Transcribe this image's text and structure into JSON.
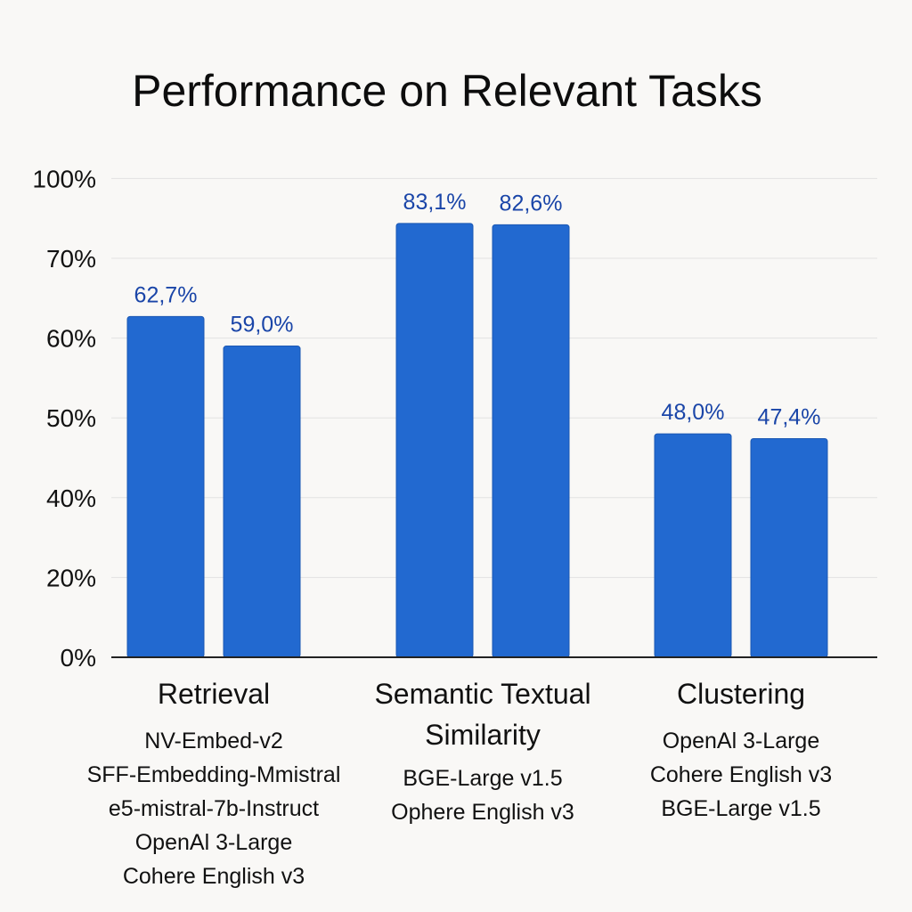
{
  "chart_data": {
    "type": "bar",
    "title": "Performance on Relevant Tasks",
    "ytick_labels": [
      "0%",
      "20%",
      "40%",
      "50%",
      "60%",
      "70%",
      "100%"
    ],
    "groups": [
      {
        "category": [
          "Retrieval"
        ],
        "bars": [
          {
            "value": 62.7,
            "label": "62,7%"
          },
          {
            "value": 59.0,
            "label": "59,0%"
          }
        ],
        "models": [
          "NV-Embed-v2",
          "SFF-Embedding-Mmistral",
          "e5-mistral-7b-Instruct",
          "OpenAl 3-Large",
          "Cohere English v3"
        ]
      },
      {
        "category": [
          "Semantic Textual",
          "Similarity"
        ],
        "bars": [
          {
            "value": 83.1,
            "label": "83,1%"
          },
          {
            "value": 82.6,
            "label": "82,6%"
          }
        ],
        "models": [
          "BGE-Large v1.5",
          "Ophere English v3"
        ]
      },
      {
        "category": [
          "Clustering"
        ],
        "bars": [
          {
            "value": 48.0,
            "label": "48,0%"
          },
          {
            "value": 47.4,
            "label": "47,4%"
          }
        ],
        "models": [
          "OpenAl 3-Large",
          "Cohere English v3",
          "BGE-Large v1.5"
        ]
      }
    ],
    "grid": true,
    "colors": {
      "bar": "#2269d0",
      "bar_edge": "#1b57b3",
      "data_label": "#1a45a8",
      "grid": "#e2e2e2",
      "axis": "#222222"
    }
  }
}
